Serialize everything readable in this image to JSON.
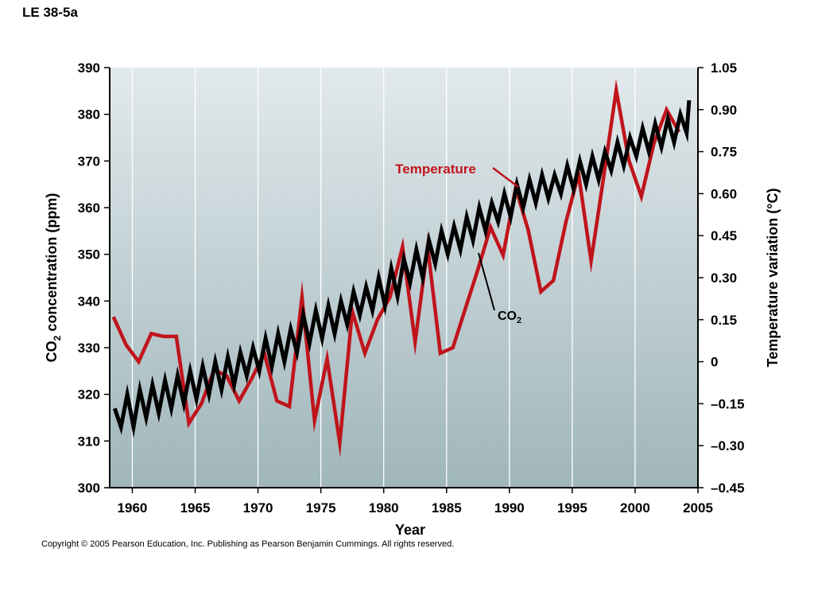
{
  "figure_label": "LE 38-5a",
  "copyright": "Copyright © 2005 Pearson Education, Inc. Publishing as Pearson Benjamin Cummings. All rights reserved.",
  "colors": {
    "temperature": "#c0141c",
    "co2": "#000000",
    "grid": "#ffffff",
    "plot_top": "#e2e9ec",
    "plot_bottom": "#9fb6bb"
  },
  "chart_data": {
    "type": "line",
    "xlabel": "Year",
    "ylabel_left": {
      "main": "CO",
      "sub": "2",
      "rest": " concentration (ppm)"
    },
    "ylabel_right": "Temperature variation (°C)",
    "xlim": [
      1958.2,
      2005
    ],
    "ylim_left": [
      300,
      390
    ],
    "ylim_right": [
      -0.45,
      1.05
    ],
    "x_ticks": [
      1960,
      1965,
      1970,
      1975,
      1980,
      1985,
      1990,
      1995,
      2000,
      2005
    ],
    "y_left_ticks": [
      300,
      310,
      320,
      330,
      340,
      350,
      360,
      370,
      380,
      390
    ],
    "y_right_ticks": [
      {
        "value": 1.05,
        "label": "1.05"
      },
      {
        "value": 0.9,
        "label": "0.90"
      },
      {
        "value": 0.75,
        "label": "0.75"
      },
      {
        "value": 0.6,
        "label": "0.60"
      },
      {
        "value": 0.45,
        "label": "0.45"
      },
      {
        "value": 0.3,
        "label": "0.30"
      },
      {
        "value": 0.15,
        "label": "0.15"
      },
      {
        "value": 0,
        "label": "0"
      },
      {
        "value": -0.15,
        "label": "–0.15"
      },
      {
        "value": -0.3,
        "label": "–0.30"
      },
      {
        "value": -0.45,
        "label": "–0.45"
      }
    ],
    "grid": true,
    "series": [
      {
        "name": "Temperature",
        "axis": "right",
        "x": [
          1958.5,
          1959.5,
          1960.5,
          1961.5,
          1962.5,
          1963.5,
          1964.5,
          1965.5,
          1966.5,
          1967.5,
          1968.5,
          1969.5,
          1970.5,
          1971.5,
          1972.5,
          1973.5,
          1974.5,
          1975.5,
          1976.5,
          1977.5,
          1978.5,
          1979.5,
          1980.5,
          1981.5,
          1982.5,
          1983.5,
          1984.5,
          1985.5,
          1986.5,
          1987.5,
          1988.5,
          1989.5,
          1990.5,
          1991.5,
          1992.5,
          1993.5,
          1994.5,
          1995.5,
          1996.5,
          1997.5,
          1998.5,
          1999.5,
          2000.5,
          2001.5,
          2002.5,
          2003.5
        ],
        "values": [
          0.16,
          0.06,
          0.0,
          0.1,
          0.09,
          0.09,
          -0.22,
          -0.15,
          -0.03,
          -0.05,
          -0.14,
          -0.06,
          0.03,
          -0.14,
          -0.16,
          0.23,
          -0.21,
          0.01,
          -0.29,
          0.18,
          0.03,
          0.15,
          0.23,
          0.41,
          0.07,
          0.41,
          0.03,
          0.05,
          0.19,
          0.33,
          0.48,
          0.38,
          0.62,
          0.47,
          0.25,
          0.29,
          0.5,
          0.67,
          0.36,
          0.66,
          0.97,
          0.72,
          0.59,
          0.78,
          0.9,
          0.82
        ]
      },
      {
        "name": "CO2",
        "label_main": "CO",
        "label_sub": "2",
        "axis": "left",
        "x": [
          1958.6,
          1959.1,
          1959.6,
          1960.1,
          1960.6,
          1961.1,
          1961.6,
          1962.1,
          1962.6,
          1963.1,
          1963.6,
          1964.1,
          1964.6,
          1965.1,
          1965.6,
          1966.1,
          1966.6,
          1967.1,
          1967.6,
          1968.1,
          1968.6,
          1969.1,
          1969.6,
          1970.1,
          1970.6,
          1971.1,
          1971.6,
          1972.1,
          1972.6,
          1973.1,
          1973.6,
          1974.1,
          1974.6,
          1975.1,
          1975.6,
          1976.1,
          1976.6,
          1977.1,
          1977.6,
          1978.1,
          1978.6,
          1979.1,
          1979.6,
          1980.1,
          1980.6,
          1981.1,
          1981.6,
          1982.1,
          1982.6,
          1983.1,
          1983.6,
          1984.1,
          1984.6,
          1985.1,
          1985.6,
          1986.1,
          1986.6,
          1987.1,
          1987.6,
          1988.1,
          1988.6,
          1989.1,
          1989.6,
          1990.1,
          1990.6,
          1991.1,
          1991.6,
          1992.1,
          1992.6,
          1993.1,
          1993.6,
          1994.1,
          1994.6,
          1995.1,
          1995.6,
          1996.1,
          1996.6,
          1997.1,
          1997.6,
          1998.1,
          1998.6,
          1999.1,
          1999.6,
          2000.1,
          2000.6,
          2001.1,
          2001.6,
          2002.1,
          2002.6,
          2003.1,
          2003.6,
          2004.1,
          2004.3
        ],
        "values": [
          317,
          313,
          320,
          313,
          321,
          315,
          322,
          316,
          323,
          317,
          324,
          318,
          325,
          319,
          326,
          320,
          327,
          321,
          328,
          322,
          329,
          324,
          330,
          325,
          332,
          326,
          333,
          327,
          334,
          329,
          337,
          331,
          338,
          332,
          339,
          333,
          340,
          335,
          342,
          337,
          343,
          338,
          345,
          339,
          347,
          341,
          349,
          344,
          351,
          345,
          353,
          348,
          355,
          350,
          356,
          351,
          358,
          353,
          360,
          355,
          361,
          357,
          363,
          358,
          365,
          360,
          366,
          361,
          367,
          362,
          367,
          363,
          369,
          364,
          370,
          365,
          371,
          366,
          372,
          368,
          374,
          369,
          375,
          371,
          377,
          372,
          378,
          373,
          379,
          374,
          380,
          376,
          383
        ]
      }
    ]
  }
}
